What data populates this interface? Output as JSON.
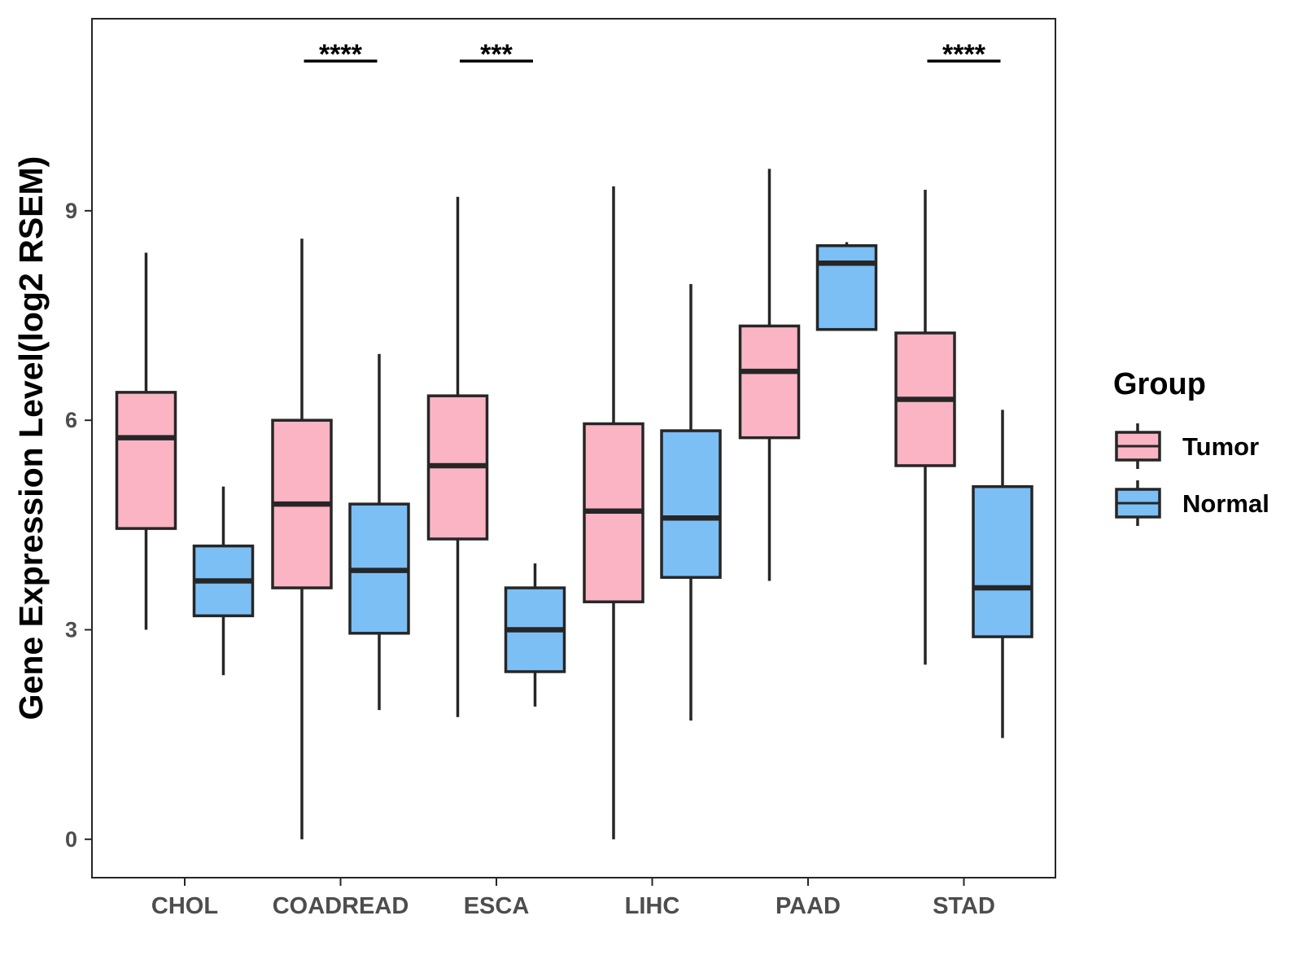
{
  "chart_data": {
    "type": "boxplot",
    "title": "",
    "xlabel": "",
    "ylabel": "Gene Expression Level(log2 RSEM)",
    "ylim": [
      -0.55,
      11.75
    ],
    "yticks": [
      0,
      3,
      6,
      9
    ],
    "categories": [
      "CHOL",
      "COADREAD",
      "ESCA",
      "LIHC",
      "PAAD",
      "STAD"
    ],
    "legend": {
      "title": "Group",
      "position": "right",
      "entries": [
        "Tumor",
        "Normal"
      ]
    },
    "series": [
      {
        "name": "Tumor",
        "color": "#fbb4c3",
        "boxes": [
          {
            "category": "CHOL",
            "min": 3.0,
            "q1": 4.45,
            "median": 5.75,
            "q3": 6.4,
            "max": 8.4
          },
          {
            "category": "COADREAD",
            "min": 0.0,
            "q1": 3.6,
            "median": 4.8,
            "q3": 6.0,
            "max": 8.6
          },
          {
            "category": "ESCA",
            "min": 1.75,
            "q1": 4.3,
            "median": 5.35,
            "q3": 6.35,
            "max": 9.2
          },
          {
            "category": "LIHC",
            "min": 0.0,
            "q1": 3.4,
            "median": 4.7,
            "q3": 5.95,
            "max": 9.35
          },
          {
            "category": "PAAD",
            "min": 3.7,
            "q1": 5.75,
            "median": 6.7,
            "q3": 7.35,
            "max": 9.6
          },
          {
            "category": "STAD",
            "min": 2.5,
            "q1": 5.35,
            "median": 6.3,
            "q3": 7.25,
            "max": 9.3
          }
        ]
      },
      {
        "name": "Normal",
        "color": "#7bbff5",
        "boxes": [
          {
            "category": "CHOL",
            "min": 2.35,
            "q1": 3.2,
            "median": 3.7,
            "q3": 4.2,
            "max": 5.05
          },
          {
            "category": "COADREAD",
            "min": 1.85,
            "q1": 2.95,
            "median": 3.85,
            "q3": 4.8,
            "max": 6.95
          },
          {
            "category": "ESCA",
            "min": 1.9,
            "q1": 2.4,
            "median": 3.0,
            "q3": 3.6,
            "max": 3.95
          },
          {
            "category": "LIHC",
            "min": 1.7,
            "q1": 3.75,
            "median": 4.6,
            "q3": 5.85,
            "max": 7.95
          },
          {
            "category": "PAAD",
            "min": 7.3,
            "q1": 7.3,
            "median": 8.25,
            "q3": 8.5,
            "max": 8.55
          },
          {
            "category": "STAD",
            "min": 1.45,
            "q1": 2.9,
            "median": 3.6,
            "q3": 5.05,
            "max": 6.15
          }
        ]
      }
    ],
    "significance": [
      {
        "category": "COADREAD",
        "label": "****"
      },
      {
        "category": "ESCA",
        "label": "***"
      },
      {
        "category": "STAD",
        "label": "****"
      }
    ]
  }
}
